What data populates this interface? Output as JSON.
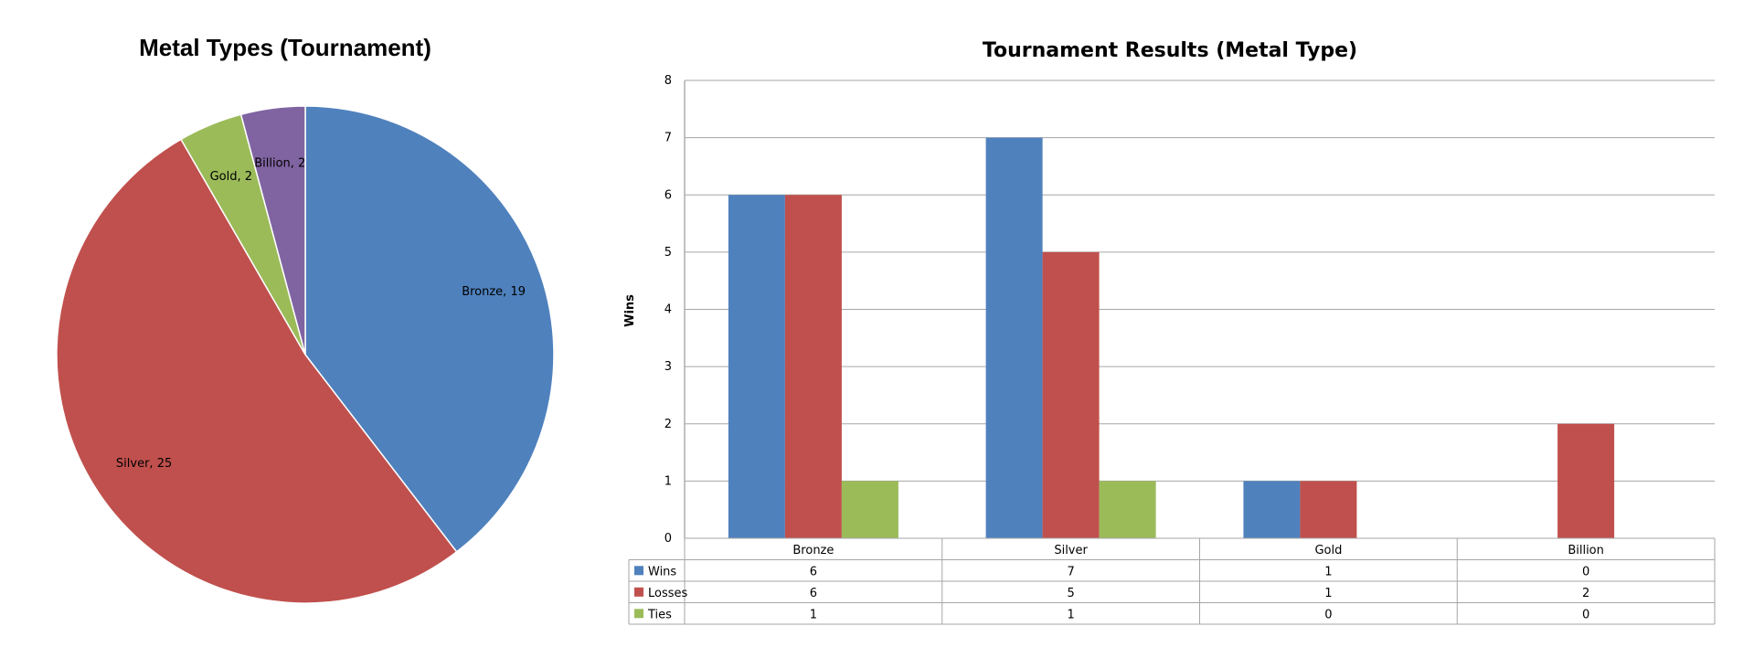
{
  "chart_data": [
    {
      "type": "pie",
      "title": "Metal Types (Tournament)",
      "categories": [
        "Bronze",
        "Silver",
        "Gold",
        "Billion"
      ],
      "values": [
        19,
        25,
        2,
        2
      ],
      "slice_labels": [
        "Bronze, 19",
        "Silver, 25",
        "Gold, 2",
        "Billion, 2"
      ],
      "colors": [
        "#4F81BD",
        "#C0504D",
        "#9BBB59",
        "#8064A2"
      ],
      "start_angle_deg": 0,
      "direction": "clockwise"
    },
    {
      "type": "bar",
      "title": "Tournament Results (Metal Type)",
      "ylabel": "Wins",
      "xlabel": "",
      "categories": [
        "Bronze",
        "Silver",
        "Gold",
        "Billion"
      ],
      "series": [
        {
          "name": "Wins",
          "values": [
            6,
            7,
            1,
            0
          ],
          "color": "#4F81BD"
        },
        {
          "name": "Losses",
          "values": [
            6,
            5,
            1,
            2
          ],
          "color": "#C0504D"
        },
        {
          "name": "Ties",
          "values": [
            1,
            1,
            0,
            0
          ],
          "color": "#9BBB59"
        }
      ],
      "ylim": [
        0,
        8
      ],
      "yticks": [
        0,
        1,
        2,
        3,
        4,
        5,
        6,
        7,
        8
      ],
      "grid": true,
      "legend": "data-table-bottom",
      "data_table": true
    }
  ]
}
